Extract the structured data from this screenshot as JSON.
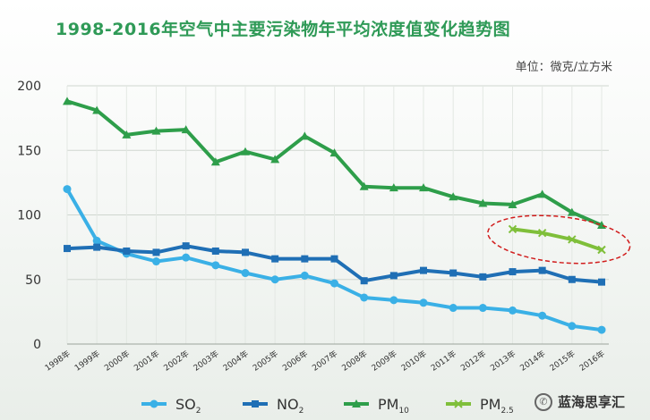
{
  "title": "1998-2016年空气中主要污染物年平均浓度值变化趋势图",
  "unit": "单位：微克/立方米",
  "watermark": "蓝海思享汇",
  "chart_data": {
    "type": "line",
    "title": "1998-2016年空气中主要污染物年平均浓度值变化趋势图",
    "ylabel": "单位：微克/立方米",
    "ylim": [
      0,
      200
    ],
    "yticks": [
      0,
      50,
      100,
      150,
      200
    ],
    "grid": true,
    "legend_position": "bottom",
    "categories": [
      "1998年",
      "1999年",
      "2000年",
      "2001年",
      "2002年",
      "2003年",
      "2004年",
      "2005年",
      "2006年",
      "2007年",
      "2008年",
      "2009年",
      "2010年",
      "2011年",
      "2012年",
      "2013年",
      "2014年",
      "2015年",
      "2016年"
    ],
    "series": [
      {
        "name": "SO2",
        "label_main": "SO",
        "label_sub": "2",
        "color": "#3ab0e6",
        "marker": "circle",
        "values": [
          120,
          80,
          70,
          64,
          67,
          61,
          55,
          50,
          53,
          47,
          36,
          34,
          32,
          28,
          28,
          26,
          22,
          14,
          11
        ]
      },
      {
        "name": "NO2",
        "label_main": "NO",
        "label_sub": "2",
        "color": "#1f6fb5",
        "marker": "square",
        "values": [
          74,
          75,
          72,
          71,
          76,
          72,
          71,
          66,
          66,
          66,
          49,
          53,
          57,
          55,
          52,
          56,
          57,
          50,
          48
        ]
      },
      {
        "name": "PM10",
        "label_main": "PM",
        "label_sub": "10",
        "color": "#2e9e4a",
        "marker": "triangle",
        "values": [
          188,
          181,
          162,
          165,
          166,
          141,
          149,
          143,
          161,
          148,
          122,
          121,
          121,
          114,
          109,
          108,
          116,
          102,
          92
        ]
      },
      {
        "name": "PM2.5",
        "label_main": "PM",
        "label_sub": "2.5",
        "color": "#7fbf3a",
        "marker": "x",
        "values": [
          null,
          null,
          null,
          null,
          null,
          null,
          null,
          null,
          null,
          null,
          null,
          null,
          null,
          null,
          null,
          89,
          86,
          81,
          73
        ]
      }
    ],
    "highlight": {
      "series": "PM2.5",
      "shape": "dashed-ellipse",
      "color": "#d11c1c"
    }
  }
}
